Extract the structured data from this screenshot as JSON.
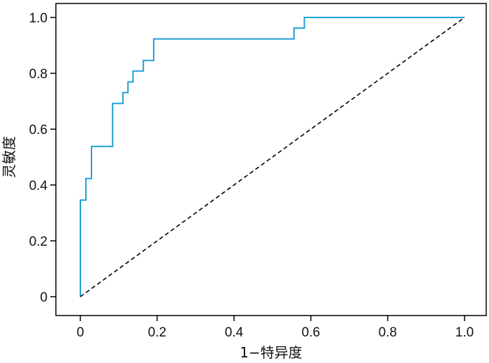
{
  "chart_data": {
    "type": "line",
    "title": "",
    "xlabel": "1−特异度",
    "ylabel": "灵敏度",
    "xlim": [
      0,
      1
    ],
    "ylim": [
      0,
      1
    ],
    "xticks": [
      0,
      0.2,
      0.4,
      0.6,
      0.8,
      1.0
    ],
    "xtick_labels": [
      "0",
      "0.2",
      "0.4",
      "0.6",
      "0.8",
      "1.0"
    ],
    "yticks": [
      0,
      0.2,
      0.4,
      0.6,
      0.8,
      1.0
    ],
    "ytick_labels": [
      "0",
      "0.2",
      "0.4",
      "0.6",
      "0.8",
      "1.0"
    ],
    "grid": false,
    "legend": "none",
    "series": [
      {
        "style": "solid",
        "color": "#1f9fd6",
        "points": [
          [
            0.0,
            0.0
          ],
          [
            0.0,
            0.346
          ],
          [
            0.0145,
            0.346
          ],
          [
            0.0145,
            0.423
          ],
          [
            0.029,
            0.423
          ],
          [
            0.029,
            0.538
          ],
          [
            0.084,
            0.538
          ],
          [
            0.084,
            0.692
          ],
          [
            0.111,
            0.692
          ],
          [
            0.111,
            0.731
          ],
          [
            0.124,
            0.731
          ],
          [
            0.124,
            0.769
          ],
          [
            0.137,
            0.769
          ],
          [
            0.137,
            0.808
          ],
          [
            0.164,
            0.808
          ],
          [
            0.164,
            0.846
          ],
          [
            0.191,
            0.846
          ],
          [
            0.191,
            0.923
          ],
          [
            0.556,
            0.923
          ],
          [
            0.556,
            0.962
          ],
          [
            0.583,
            0.962
          ],
          [
            0.583,
            1.0
          ],
          [
            1.0,
            1.0
          ]
        ]
      },
      {
        "style": "dashed",
        "color": "#000000",
        "points": [
          [
            0.0,
            0.0
          ],
          [
            1.0,
            1.0
          ]
        ]
      }
    ]
  }
}
